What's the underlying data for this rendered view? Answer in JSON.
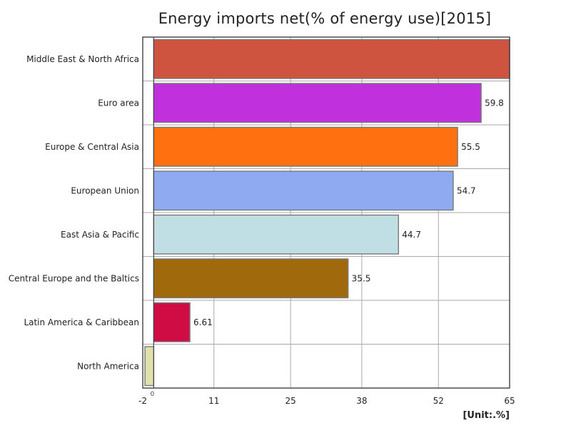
{
  "chart_data": {
    "type": "bar",
    "orientation": "horizontal",
    "title": "Energy imports net(% of energy use)[2015]",
    "unit_label": "[Unit:.%]",
    "categories": [
      "Middle East & North Africa",
      "Euro area",
      "Europe & Central Asia",
      "European Union",
      "East Asia & Pacific",
      "Central Europe and the Baltics",
      "Latin America & Caribbean",
      "North America"
    ],
    "values": [
      65,
      59.8,
      55.5,
      54.7,
      44.7,
      35.5,
      6.61,
      -1.6
    ],
    "value_labels": [
      "",
      "59.8",
      "55.5",
      "54.7",
      "44.7",
      "35.5",
      "6.61",
      ""
    ],
    "colors": [
      "#cf5440",
      "#c030dc",
      "#ff7010",
      "#8faaf0",
      "#c0dfe4",
      "#a06a0c",
      "#d00c44",
      "#e1e1ad"
    ],
    "xlim": [
      -2,
      65
    ],
    "ticks": [
      -2,
      11,
      25,
      38,
      52,
      65
    ],
    "tick_labels": [
      "-2",
      "11",
      "25",
      "38",
      "52",
      "65"
    ],
    "zero_label": "0",
    "grid": true,
    "legend": "none"
  }
}
